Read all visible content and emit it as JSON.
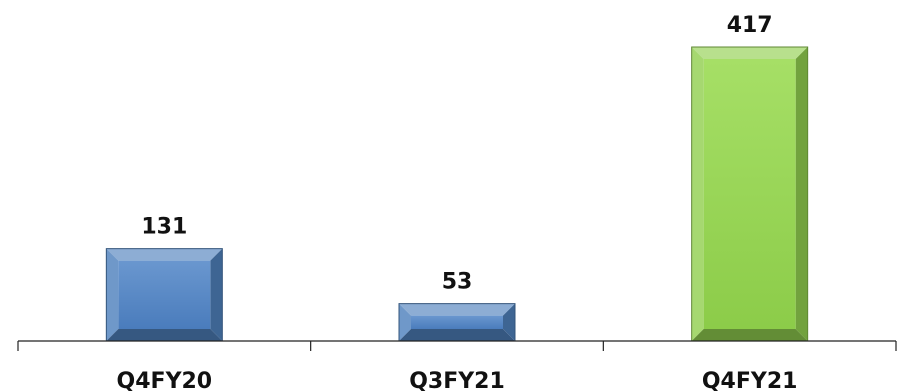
{
  "chart_data": {
    "type": "bar",
    "categories": [
      "Q4FY20",
      "Q3FY21",
      "Q4FY21"
    ],
    "values": [
      131,
      53,
      417
    ],
    "data_labels": [
      "131",
      "53",
      "417"
    ],
    "title": "",
    "xlabel": "",
    "ylabel": "",
    "ylim": [
      0,
      417
    ],
    "grid": false,
    "legend": "none",
    "bar_colors": [
      "#4F81BD",
      "#4F81BD",
      "#92D050"
    ]
  }
}
